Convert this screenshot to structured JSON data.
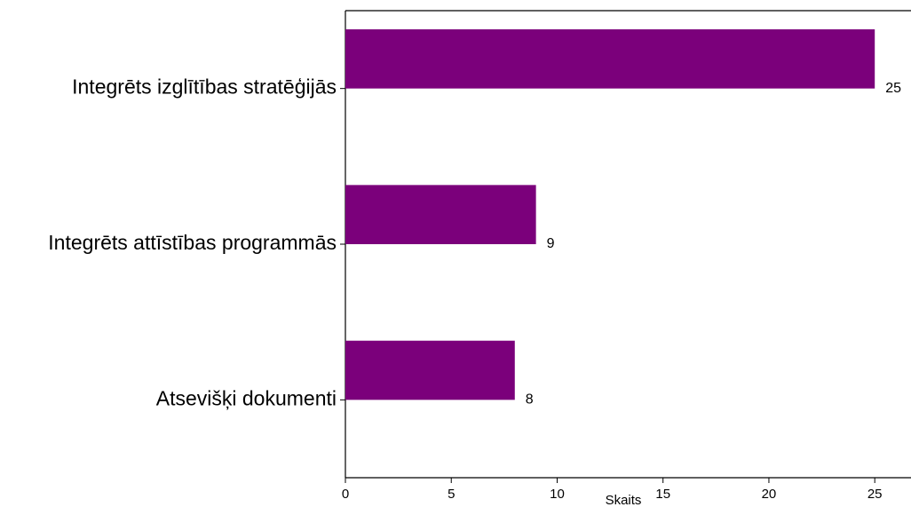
{
  "chart_data": {
    "type": "barh",
    "categories": [
      "Integrēts izglītības stratēģijās",
      "Integrēts attīstības programmās",
      "Atsevišķi dokumenti"
    ],
    "values": [
      25,
      9,
      8
    ],
    "color": "#7b007b",
    "xlabel": "Skaits",
    "xlim": [
      0,
      26.25
    ],
    "xticks": [
      0,
      5,
      10,
      15,
      20,
      25
    ],
    "grid": false
  }
}
